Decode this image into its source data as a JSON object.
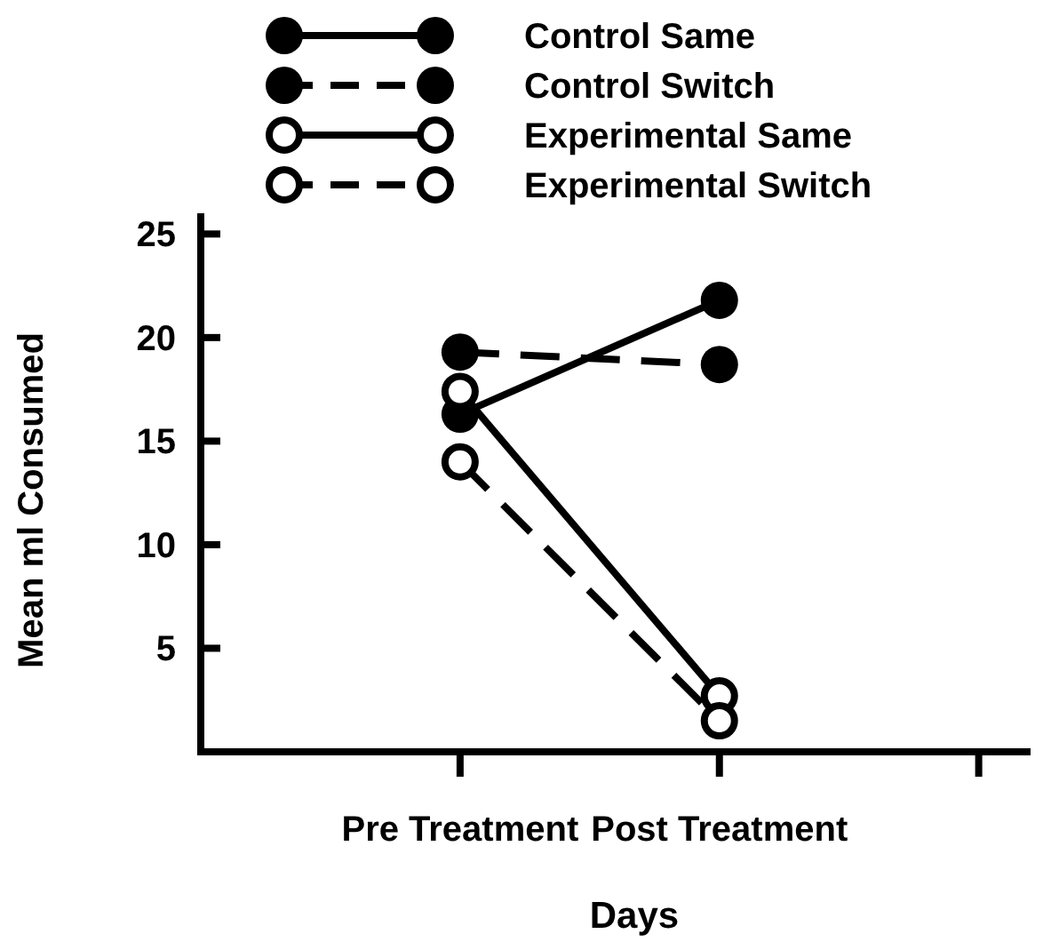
{
  "chart_data": {
    "type": "line",
    "xlabel": "Days",
    "ylabel": "Mean ml Consumed",
    "categories": [
      "Pre Treatment",
      "Post Treatment",
      null
    ],
    "ylim": [
      0,
      26
    ],
    "yticks": [
      5,
      10,
      15,
      20,
      25
    ],
    "grid": false,
    "legend": "top",
    "series": [
      {
        "name": "Control Same",
        "color": "#000000",
        "line_style": "solid",
        "marker": "circle",
        "values": [
          16.3,
          21.8,
          null
        ]
      },
      {
        "name": "Control Switch",
        "color": "#000000",
        "line_style": "dashed",
        "marker": "circle",
        "values": [
          19.3,
          18.7,
          null
        ]
      },
      {
        "name": "Experimental Same",
        "color": "#000000",
        "line_style": "solid",
        "marker": "circle-open",
        "values": [
          17.4,
          2.7,
          null
        ]
      },
      {
        "name": "Experimental Switch",
        "color": "#000000",
        "line_style": "dashed",
        "marker": "circle-open",
        "values": [
          14.0,
          1.5,
          null
        ]
      }
    ]
  }
}
